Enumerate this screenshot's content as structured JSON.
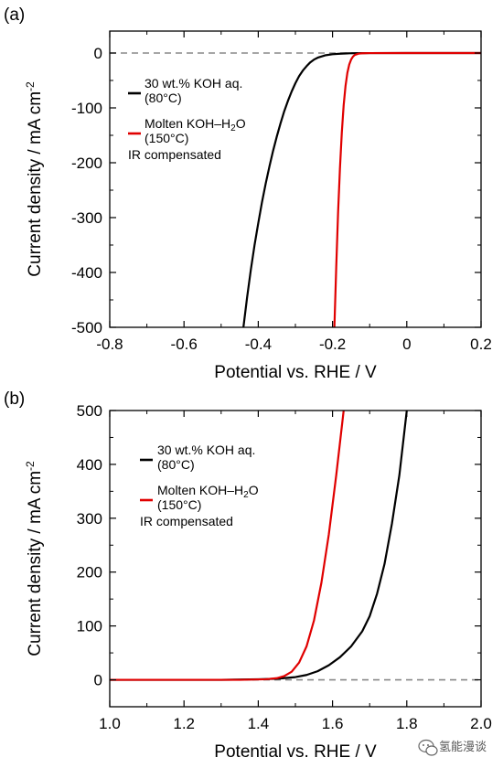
{
  "chart_data": [
    {
      "type": "line",
      "panel_label": "(a)",
      "xlabel": "Potential vs. RHE / V",
      "ylabel": "Current density / mA cm",
      "ylabel_sup": "-2",
      "xlim": [
        -0.8,
        0.2
      ],
      "ylim": [
        -500,
        40
      ],
      "xticks": [
        -0.8,
        -0.6,
        -0.4,
        -0.2,
        0,
        0.2
      ],
      "xtick_labels": [
        "-0.8",
        "-0.6",
        "-0.4",
        "-0.2",
        "0",
        "0.2"
      ],
      "yticks": [
        -500,
        -400,
        -300,
        -200,
        -100,
        0
      ],
      "ytick_labels": [
        "-500",
        "-400",
        "-300",
        "-200",
        "-100",
        "0"
      ],
      "zero_line": {
        "value": 0,
        "style": "dashed",
        "color": "#888888"
      },
      "annotation": "IR compensated",
      "series": [
        {
          "name_line1": "30 wt.% KOH aq.",
          "name_line2": "(80°C)",
          "color": "#000000",
          "x": [
            -0.44,
            -0.43,
            -0.42,
            -0.41,
            -0.4,
            -0.39,
            -0.38,
            -0.37,
            -0.36,
            -0.35,
            -0.34,
            -0.33,
            -0.32,
            -0.31,
            -0.3,
            -0.29,
            -0.28,
            -0.27,
            -0.26,
            -0.25,
            -0.24,
            -0.22,
            -0.2,
            -0.18,
            -0.16,
            -0.14,
            -0.12,
            -0.1,
            0.0,
            0.1,
            0.2
          ],
          "y": [
            -500,
            -445,
            -395,
            -350,
            -310,
            -272,
            -238,
            -207,
            -178,
            -152,
            -128,
            -106,
            -87,
            -70,
            -55,
            -42,
            -32,
            -24,
            -17,
            -12,
            -8.5,
            -4.2,
            -2.2,
            -1.2,
            -0.6,
            -0.3,
            -0.15,
            -0.1,
            -0.05,
            0,
            0
          ]
        },
        {
          "name_line1": "Molten KOH–H",
          "name_sub": "2",
          "name_tail": "O",
          "name_line2": "(150°C)",
          "color": "#e00000",
          "x": [
            -0.195,
            -0.19,
            -0.185,
            -0.18,
            -0.175,
            -0.17,
            -0.165,
            -0.16,
            -0.155,
            -0.15,
            -0.145,
            -0.14,
            -0.13,
            -0.12,
            -0.1,
            0.0,
            0.1,
            0.2
          ],
          "y": [
            -500,
            -390,
            -290,
            -210,
            -145,
            -95,
            -60,
            -36,
            -21,
            -12,
            -6.5,
            -3.5,
            -1.2,
            -0.4,
            -0.1,
            0,
            0,
            0
          ]
        }
      ]
    },
    {
      "type": "line",
      "panel_label": "(b)",
      "xlabel": "Potential vs. RHE / V",
      "ylabel": "Current density / mA cm",
      "ylabel_sup": "-2",
      "xlim": [
        1.0,
        2.0
      ],
      "ylim": [
        -50,
        500
      ],
      "xticks": [
        1.0,
        1.2,
        1.4,
        1.6,
        1.8,
        2.0
      ],
      "xtick_labels": [
        "1.0",
        "1.2",
        "1.4",
        "1.6",
        "1.8",
        "2.0"
      ],
      "yticks": [
        0,
        100,
        200,
        300,
        400,
        500
      ],
      "ytick_labels": [
        "0",
        "100",
        "200",
        "300",
        "400",
        "500"
      ],
      "zero_line": {
        "value": 0,
        "style": "dashed",
        "color": "#888888"
      },
      "annotation": "IR compensated",
      "series": [
        {
          "name_line1": "30 wt.% KOH aq.",
          "name_line2": "(80°C)",
          "color": "#000000",
          "x": [
            1.0,
            1.3,
            1.4,
            1.45,
            1.5,
            1.53,
            1.56,
            1.59,
            1.62,
            1.65,
            1.68,
            1.7,
            1.72,
            1.74,
            1.76,
            1.78,
            1.79,
            1.8
          ],
          "y": [
            0,
            0,
            1,
            2,
            5,
            9,
            16,
            27,
            42,
            62,
            90,
            118,
            160,
            215,
            290,
            380,
            440,
            500
          ]
        },
        {
          "name_line1": "Molten KOH–H",
          "name_sub": "2",
          "name_tail": "O",
          "name_line2": "(150°C)",
          "color": "#e00000",
          "x": [
            1.0,
            1.35,
            1.42,
            1.45,
            1.47,
            1.49,
            1.51,
            1.53,
            1.55,
            1.57,
            1.59,
            1.61,
            1.62,
            1.63
          ],
          "y": [
            0,
            0,
            1,
            3,
            7,
            15,
            32,
            62,
            110,
            180,
            270,
            380,
            440,
            500
          ]
        }
      ]
    }
  ],
  "watermark": {
    "text": "氢能漫谈",
    "icon": "wechat-icon"
  }
}
